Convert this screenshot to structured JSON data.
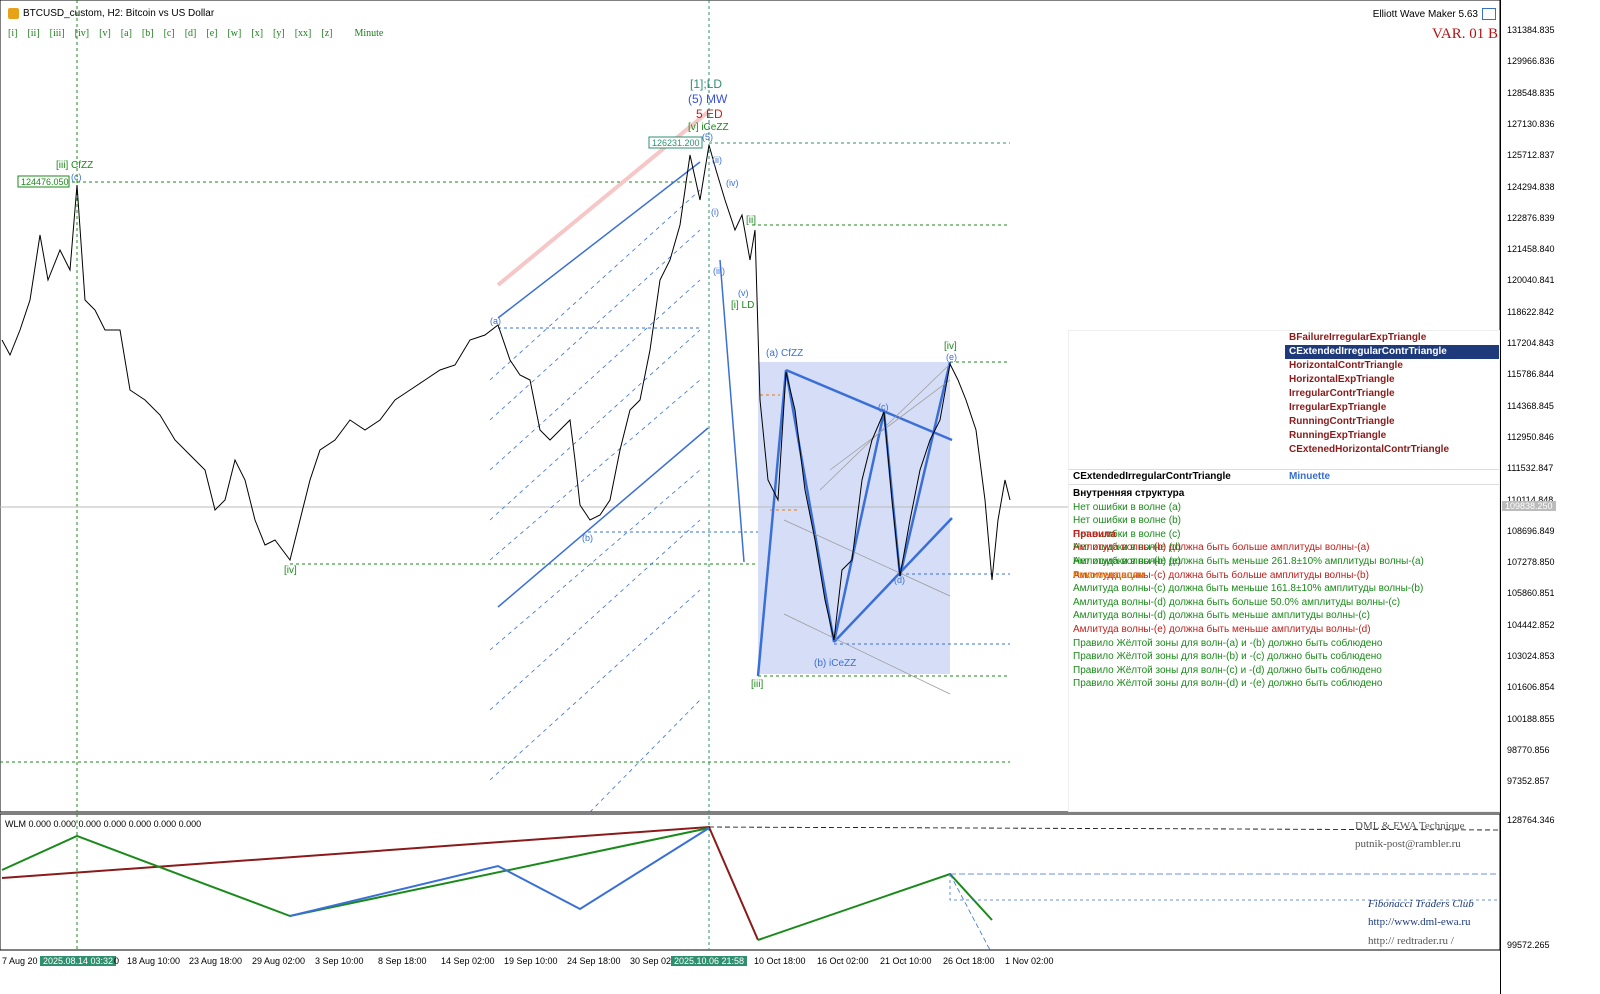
{
  "header": {
    "title": "BTCUSD_custom, H2:  Bitcoin vs US Dollar",
    "indicator": "Elliott Wave Maker 5.63",
    "variant": "VAR. 01 B",
    "wave_buttons": [
      "[i]",
      "[ii]",
      "[iii]",
      "[iv]",
      "[v]",
      "[a]",
      "[b]",
      "[c]",
      "[d]",
      "[e]",
      "[w]",
      "[x]",
      "[y]",
      "[xx]",
      "[z]",
      "Minute"
    ]
  },
  "price_axis": {
    "ticks": [
      "131384.835",
      "129966.836",
      "128548.835",
      "127130.836",
      "125712.837",
      "124294.838",
      "122876.839",
      "121458.840",
      "120040.841",
      "118622.842",
      "117204.843",
      "115786.844",
      "114368.845",
      "112950.846",
      "111532.847",
      "110114.848",
      "108696.849",
      "107278.850",
      "105860.851",
      "104442.852",
      "103024.853",
      "101606.854",
      "100188.855",
      "98770.856",
      "97352.857"
    ],
    "current": "109838.250",
    "sub_ticks": [
      "128764.346",
      "99572.265"
    ]
  },
  "time_axis": {
    "labels": [
      "7 Aug 20",
      "2025.08.14 03:32",
      "0",
      "18 Aug 10:00",
      "23 Aug 18:00",
      "29 Aug 02:00",
      "3 Sep 10:00",
      "8 Sep 18:00",
      "14 Sep 02:00",
      "19 Sep 10:00",
      "24 Sep 18:00",
      "30 Sep 02",
      "2025.10.06 21:58",
      "10 Oct 18:00",
      "16 Oct 02:00",
      "21 Oct 10:00",
      "26 Oct 18:00",
      "1 Nov 02:00"
    ]
  },
  "chart_labels": {
    "w1": "[1];LD",
    "w5mw": "(5) MW",
    "w5ed": "5 ED",
    "v_icezz": "[v] iCeZZ",
    "price_high": "126231.200",
    "iii_cfzz": "[iii] CfZZ",
    "price_left": "124476.050",
    "c_small": "(c)",
    "iv": "[iv]",
    "ii_right": "[ii]",
    "i_ld": "[i] LD",
    "a_cfzz": "(a) CfZZ",
    "iii_low": "[iii]",
    "b_icezz": "(b) iCeZZ",
    "iv_right": "[iv]",
    "e": "(e)",
    "c_mid": "(c)",
    "d": "(d)",
    "b_left": "(b)",
    "a_left": "(a)",
    "five": "(5)",
    "ii": "(ii)",
    "iv_small": "(iv)",
    "iii_small": "(iii)",
    "v_small": "(v)",
    "i_small": "(i)"
  },
  "panel": {
    "patterns": [
      "BFailureIrregularExpTriangle",
      "CExtendedIrregularContrTriangle",
      "HorizontalContrTriangle",
      "HorizontalExpTriangle",
      "IrregularContrTriangle",
      "IrregularExpTriangle",
      "RunningContrTriangle",
      "RunningExpTriangle",
      "CExtenedHorizontalContrTriangle"
    ],
    "selected_index": 1,
    "selected_name": "CExtendedIrregularContrTriangle",
    "degree": "Minuette",
    "internal_title": "Внутренняя структура",
    "internal": [
      "Нет ошибки в волне (a)",
      "Нет ошибки в волне (b)",
      "Нет ошибки в волне (c)",
      "Нет ошибки в волне (d)",
      "Нет ошибки в волне (e)"
    ],
    "rules_title": "Правила",
    "rules": [
      {
        "text": "Амлитуда волны-(b) должна быть больше амплитуды волны-(a)",
        "ok": false
      },
      {
        "text": "Амлитуда волны-(b) должна быть меньше 261.8±10% амплитуды волны-(a)",
        "ok": true
      },
      {
        "text": "Амлитуда волны-(c) должна быть больше амплитуды волны-(b)",
        "ok": false
      },
      {
        "text": "Амлитуда волны-(c) должна быть меньше 161.8±10% амплитуды волны-(b)",
        "ok": true
      },
      {
        "text": "Амлитуда волны-(d) должна быть больше 50.0% амплитуды волны-(c)",
        "ok": true
      },
      {
        "text": "Амлитуда волны-(d) должна быть меньше амплитуды волны-(c)",
        "ok": true
      },
      {
        "text": "Амлитуда волны-(e) должна быть меньше амплитуды волны-(d)",
        "ok": false
      },
      {
        "text": "Правило Жёлтой зоны для волн-(a) и -(b) должно быть соблюдено",
        "ok": true
      },
      {
        "text": "Правило Жёлтой зоны для волн-(b) и -(c) должно быть соблюдено",
        "ok": true
      },
      {
        "text": "Правило Жёлтой зоны для волн-(c) и -(d) должно быть соблюдено",
        "ok": true
      },
      {
        "text": "Правило Жёлтой зоны для волн-(d) и -(e) должно быть соблюдено",
        "ok": true
      }
    ],
    "recommend_title": "Рекомендации"
  },
  "subwindow": {
    "label": "WLM 0.000 0.000 0.000 0.000 0.000 0.000 0.000",
    "credits": [
      "DML & EWA Technique",
      "putnik-post@rambler.ru",
      "Fibonacci   Traders   Club",
      "http://www.dml-ewa.ru",
      "http:// redtrader.ru /"
    ]
  },
  "colors": {
    "green": "#1a8a1a",
    "blue": "#3a6fd8",
    "red": "#c0201c",
    "dark_red": "#8b1a1a",
    "zone": "#d6def7",
    "pink": "#f7c6c6"
  }
}
